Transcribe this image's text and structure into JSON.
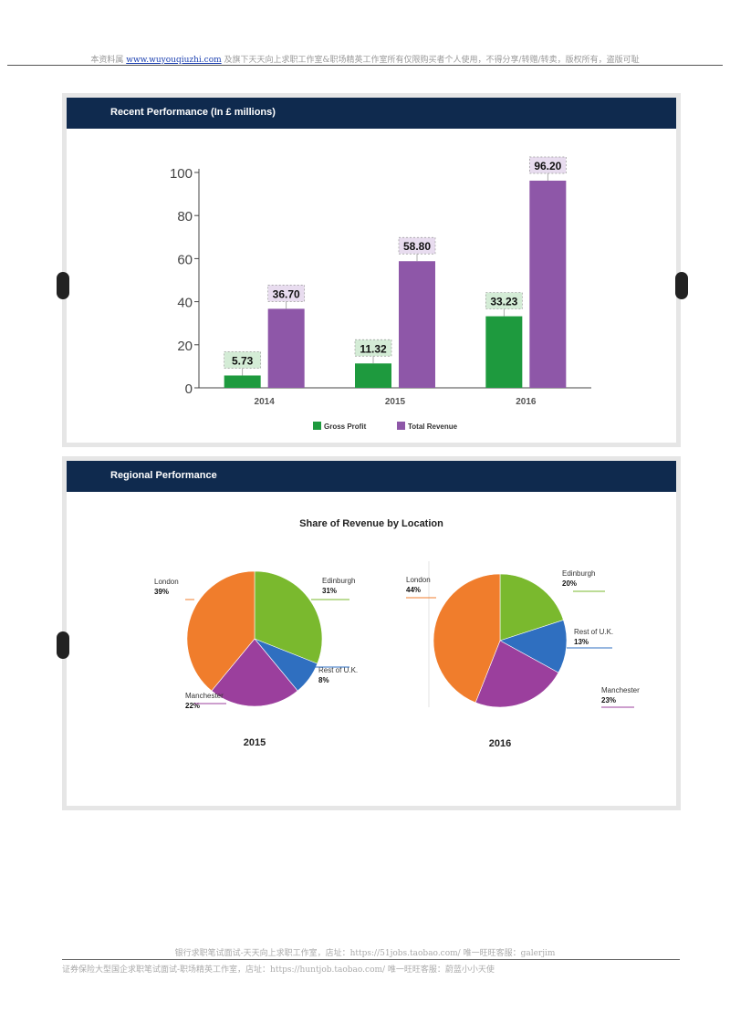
{
  "header": {
    "prefix": "本资料属",
    "link": "www.wuyouqiuzhi.com",
    "suffix": "及旗下天天向上求职工作室&职场精英工作室所有仅限购买者个人使用，不得分享/转赠/转卖，版权所有，盗版可耻"
  },
  "panel1": {
    "title": "Recent Performance (In £ millions)"
  },
  "panel2": {
    "title": "Regional Performance",
    "subtitle": "Share of Revenue by Location"
  },
  "colors": {
    "green": "#1e9a3e",
    "purple": "#8e57a8",
    "pie_green": "#7ab92e",
    "orange": "#f07d2c",
    "pie_purple": "#9b3f9d",
    "blue": "#2f6fc0",
    "navy": "#0f2a4e"
  },
  "chart_data": [
    {
      "type": "bar",
      "title": "Recent Performance (In £ millions)",
      "categories": [
        "2014",
        "2015",
        "2016"
      ],
      "series": [
        {
          "name": "Gross Profit",
          "values": [
            5.73,
            11.32,
            33.23
          ],
          "labels": [
            "5.73",
            "11.32",
            "33.23"
          ]
        },
        {
          "name": "Total Revenue",
          "values": [
            36.7,
            58.8,
            96.2
          ],
          "labels": [
            "36.70",
            "58.80",
            "96.20"
          ]
        }
      ],
      "yticks": [
        "0",
        "20",
        "40",
        "60",
        "80",
        "100"
      ],
      "ylim": [
        0,
        100
      ],
      "legend": "bottom"
    },
    {
      "type": "pie",
      "title": "Share of Revenue by Location",
      "year": "2015",
      "slices": [
        {
          "name": "Edinburgh",
          "value": 31,
          "label": "31%"
        },
        {
          "name": "Rest of U.K.",
          "value": 8,
          "label": "8%"
        },
        {
          "name": "Manchester",
          "value": 22,
          "label": "22%"
        },
        {
          "name": "London",
          "value": 39,
          "label": "39%"
        }
      ]
    },
    {
      "type": "pie",
      "year": "2016",
      "slices": [
        {
          "name": "Edinburgh",
          "value": 20,
          "label": "20%"
        },
        {
          "name": "Rest of U.K.",
          "value": 13,
          "label": "13%"
        },
        {
          "name": "Manchester",
          "value": 23,
          "label": "23%"
        },
        {
          "name": "London",
          "value": 44,
          "label": "44%"
        }
      ]
    }
  ],
  "footer": {
    "line1": "银行求职笔试面试-天天向上求职工作室，店址：https://51jobs.taobao.com/ 唯一旺旺客服：galerjim",
    "line2": "证券保险大型国企求职笔试面试-职场精英工作室，店址：https://huntjob.taobao.com/ 唯一旺旺客服：蔚蓝小小天使"
  }
}
